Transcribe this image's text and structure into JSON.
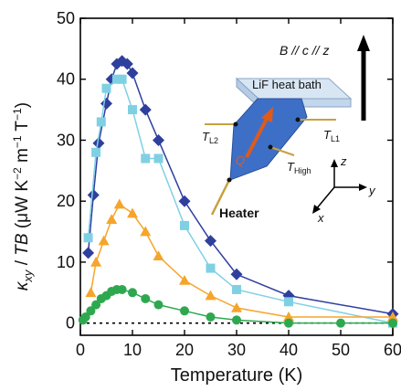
{
  "chart_data": {
    "type": "line",
    "xlabel": "Temperature (K)",
    "ylabel": "κxy / TB (μW K⁻² m⁻¹ T⁻¹)",
    "ylabel_parts": {
      "kappa": "κ",
      "sub": "xy",
      "rest1": " / ",
      "TB": "TB",
      "rest2": " (μW K",
      "e1": "−2",
      "m": " m",
      "e2": "−1",
      "T": " T",
      "e3": "−1",
      "close": ")"
    },
    "xlim": [
      0,
      60
    ],
    "ylim": [
      -2,
      50
    ],
    "xticks": [
      0,
      10,
      20,
      30,
      40,
      50,
      60
    ],
    "yticks": [
      0,
      10,
      20,
      30,
      40,
      50
    ],
    "zero_line": "dotted",
    "series": [
      {
        "color": "#2e3f9e",
        "marker": "diamond",
        "points": [
          [
            1.5,
            11.5
          ],
          [
            2.5,
            21
          ],
          [
            3.5,
            29.5
          ],
          [
            5,
            36
          ],
          [
            6,
            40
          ],
          [
            7,
            42.5
          ],
          [
            8,
            43
          ],
          [
            9,
            42.5
          ],
          [
            10,
            41
          ],
          [
            12.5,
            35
          ],
          [
            15,
            30
          ],
          [
            20,
            20
          ],
          [
            25,
            13.5
          ],
          [
            30,
            8
          ],
          [
            40,
            4.5
          ],
          [
            60,
            1.5
          ]
        ]
      },
      {
        "color": "#80d0e4",
        "marker": "square",
        "points": [
          [
            1.5,
            14
          ],
          [
            3,
            28
          ],
          [
            4,
            33
          ],
          [
            5,
            38.5
          ],
          [
            7,
            40
          ],
          [
            8,
            40
          ],
          [
            10,
            35
          ],
          [
            12.5,
            27
          ],
          [
            15,
            27
          ],
          [
            20,
            16
          ],
          [
            25,
            9
          ],
          [
            30,
            5.5
          ],
          [
            40,
            3.5
          ],
          [
            60,
            0
          ]
        ]
      },
      {
        "color": "#f5a52a",
        "marker": "triangle",
        "points": [
          [
            2,
            5
          ],
          [
            3,
            10
          ],
          [
            4.5,
            13.5
          ],
          [
            6,
            17
          ],
          [
            7.5,
            19.5
          ],
          [
            10,
            18
          ],
          [
            12.5,
            15
          ],
          [
            15,
            11
          ],
          [
            20,
            7
          ],
          [
            25,
            4.5
          ],
          [
            30,
            2.5
          ],
          [
            40,
            1
          ],
          [
            60,
            1
          ]
        ]
      },
      {
        "color": "#2ea84f",
        "marker": "circle",
        "points": [
          [
            0.5,
            0.5
          ],
          [
            1,
            1
          ],
          [
            2,
            2
          ],
          [
            3,
            3
          ],
          [
            4,
            4
          ],
          [
            5,
            4.5
          ],
          [
            6,
            5.2
          ],
          [
            7,
            5.5
          ],
          [
            8,
            5.5
          ],
          [
            10,
            5
          ],
          [
            12.5,
            4
          ],
          [
            15,
            3
          ],
          [
            20,
            2
          ],
          [
            25,
            1
          ],
          [
            30,
            0.5
          ],
          [
            40,
            0
          ],
          [
            50,
            0
          ],
          [
            60,
            0
          ]
        ]
      }
    ],
    "annotations": {
      "field_label": "B // c // z",
      "bath_label": "LiF heat bath",
      "t_l2": "T",
      "t_l2_sub": "L2",
      "t_l1": "T",
      "t_l1_sub": "L1",
      "t_high": "T",
      "t_high_sub": "High",
      "q_label": "Q",
      "heater_label": "Heater",
      "axis_z": "z",
      "axis_y": "y",
      "axis_x": "x"
    }
  }
}
